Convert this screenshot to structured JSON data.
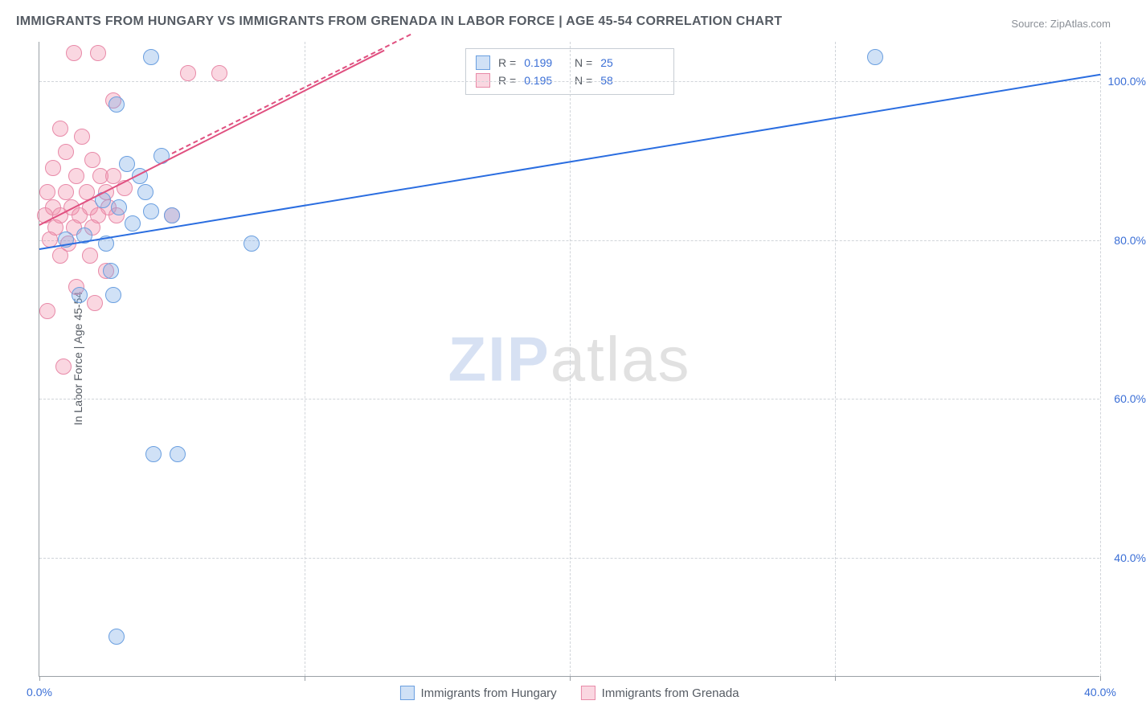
{
  "title": "IMMIGRANTS FROM HUNGARY VS IMMIGRANTS FROM GRENADA IN LABOR FORCE | AGE 45-54 CORRELATION CHART",
  "source_label": "Source:",
  "source_name": "ZipAtlas.com",
  "y_axis_label": "In Labor Force | Age 45-54",
  "watermark_a": "ZIP",
  "watermark_b": "atlas",
  "chart": {
    "type": "scatter",
    "xlim": [
      0,
      40
    ],
    "ylim": [
      25,
      105
    ],
    "x_ticks": [
      0,
      10,
      20,
      30,
      40
    ],
    "x_tick_labels": [
      "0.0%",
      "",
      "",
      "",
      "40.0%"
    ],
    "y_ticks": [
      40,
      60,
      80,
      100
    ],
    "y_tick_labels": [
      "40.0%",
      "60.0%",
      "80.0%",
      "100.0%"
    ],
    "grid_color": "#d0d4d9",
    "background_color": "#ffffff",
    "axis_color": "#9aa0a6",
    "series": [
      {
        "name": "Immigrants from Hungary",
        "marker_fill": "rgba(120,170,230,0.35)",
        "marker_stroke": "#6a9fe0",
        "line_color": "#2a6de0",
        "R": "0.199",
        "N": "25",
        "trend": {
          "x1": 0,
          "y1": 79,
          "x2": 40,
          "y2": 101,
          "dashed": false
        },
        "points": [
          {
            "x": 4.2,
            "y": 103
          },
          {
            "x": 31.5,
            "y": 103
          },
          {
            "x": 2.9,
            "y": 97
          },
          {
            "x": 4.6,
            "y": 90.5
          },
          {
            "x": 3.3,
            "y": 89.5
          },
          {
            "x": 3.8,
            "y": 88
          },
          {
            "x": 4.0,
            "y": 86
          },
          {
            "x": 2.4,
            "y": 85
          },
          {
            "x": 3.0,
            "y": 84
          },
          {
            "x": 4.2,
            "y": 83.5
          },
          {
            "x": 3.5,
            "y": 82
          },
          {
            "x": 5.0,
            "y": 83
          },
          {
            "x": 1.0,
            "y": 80
          },
          {
            "x": 1.7,
            "y": 80.5
          },
          {
            "x": 2.5,
            "y": 79.5
          },
          {
            "x": 8.0,
            "y": 79.5
          },
          {
            "x": 2.7,
            "y": 76
          },
          {
            "x": 1.5,
            "y": 73
          },
          {
            "x": 2.8,
            "y": 73
          },
          {
            "x": 4.3,
            "y": 53
          },
          {
            "x": 5.2,
            "y": 53
          },
          {
            "x": 2.9,
            "y": 30
          }
        ]
      },
      {
        "name": "Immigrants from Grenada",
        "marker_fill": "rgba(240,140,170,0.35)",
        "marker_stroke": "#e88aa8",
        "line_color": "#e05080",
        "R": "0.195",
        "N": "58",
        "trend": {
          "x1": 0,
          "y1": 82,
          "x2": 13,
          "y2": 104,
          "dashed": false
        },
        "trend_ext": {
          "x1": 5,
          "y1": 91,
          "x2": 14,
          "y2": 106,
          "dashed": true
        },
        "points": [
          {
            "x": 1.3,
            "y": 103.5
          },
          {
            "x": 2.2,
            "y": 103.5
          },
          {
            "x": 5.6,
            "y": 101
          },
          {
            "x": 6.8,
            "y": 101
          },
          {
            "x": 2.8,
            "y": 97.5
          },
          {
            "x": 0.8,
            "y": 94
          },
          {
            "x": 1.6,
            "y": 93
          },
          {
            "x": 1.0,
            "y": 91
          },
          {
            "x": 2.0,
            "y": 90
          },
          {
            "x": 0.5,
            "y": 89
          },
          {
            "x": 1.4,
            "y": 88
          },
          {
            "x": 2.3,
            "y": 88
          },
          {
            "x": 2.8,
            "y": 88
          },
          {
            "x": 0.3,
            "y": 86
          },
          {
            "x": 1.0,
            "y": 86
          },
          {
            "x": 1.8,
            "y": 86
          },
          {
            "x": 2.5,
            "y": 86
          },
          {
            "x": 3.2,
            "y": 86.5
          },
          {
            "x": 0.5,
            "y": 84
          },
          {
            "x": 1.2,
            "y": 84
          },
          {
            "x": 1.9,
            "y": 84
          },
          {
            "x": 2.6,
            "y": 84
          },
          {
            "x": 0.2,
            "y": 83
          },
          {
            "x": 0.8,
            "y": 83
          },
          {
            "x": 1.5,
            "y": 83
          },
          {
            "x": 2.2,
            "y": 83
          },
          {
            "x": 2.9,
            "y": 83
          },
          {
            "x": 5.0,
            "y": 83
          },
          {
            "x": 0.6,
            "y": 81.5
          },
          {
            "x": 1.3,
            "y": 81.5
          },
          {
            "x": 2.0,
            "y": 81.5
          },
          {
            "x": 0.4,
            "y": 80
          },
          {
            "x": 1.1,
            "y": 79.5
          },
          {
            "x": 0.8,
            "y": 78
          },
          {
            "x": 1.9,
            "y": 78
          },
          {
            "x": 2.5,
            "y": 76
          },
          {
            "x": 1.4,
            "y": 74
          },
          {
            "x": 2.1,
            "y": 72
          },
          {
            "x": 0.3,
            "y": 71
          },
          {
            "x": 0.9,
            "y": 64
          }
        ]
      }
    ]
  },
  "legend_top": {
    "r_label": "R =",
    "n_label": "N ="
  },
  "legend_bottom_items": [
    "Immigrants from Hungary",
    "Immigrants from Grenada"
  ]
}
